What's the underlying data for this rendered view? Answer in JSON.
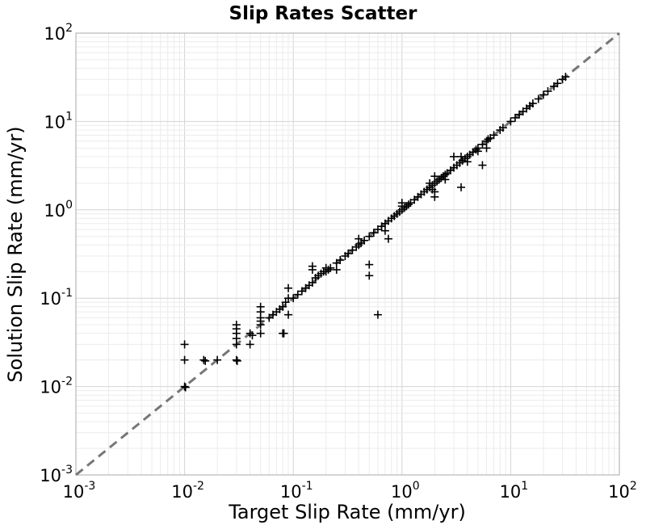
{
  "chart_data": {
    "type": "scatter",
    "title": "Slip Rates Scatter",
    "xlabel": "Target Slip Rate (mm/yr)",
    "ylabel": "Solution Slip Rate (mm/yr)",
    "xscale": "log",
    "yscale": "log",
    "xlim": [
      0.001,
      100
    ],
    "ylim": [
      0.001,
      100
    ],
    "grid": true,
    "marker": "plus",
    "marker_color": "#000000",
    "reference_line": {
      "style": "dashed",
      "color": "#777777",
      "from": [
        0.001,
        0.001
      ],
      "to": [
        100,
        100
      ]
    },
    "xticks": [
      {
        "value": 0.001,
        "base": "10",
        "exp": "-3"
      },
      {
        "value": 0.01,
        "base": "10",
        "exp": "-2"
      },
      {
        "value": 0.1,
        "base": "10",
        "exp": "-1"
      },
      {
        "value": 1,
        "base": "10",
        "exp": "0"
      },
      {
        "value": 10,
        "base": "10",
        "exp": "1"
      },
      {
        "value": 100,
        "base": "10",
        "exp": "2"
      }
    ],
    "yticks": [
      {
        "value": 0.001,
        "base": "10",
        "exp": "-3"
      },
      {
        "value": 0.01,
        "base": "10",
        "exp": "-2"
      },
      {
        "value": 0.1,
        "base": "10",
        "exp": "-1"
      },
      {
        "value": 1,
        "base": "10",
        "exp": "0"
      },
      {
        "value": 10,
        "base": "10",
        "exp": "1"
      },
      {
        "value": 100,
        "base": "10",
        "exp": "2"
      }
    ],
    "points": [
      [
        0.01,
        0.01
      ],
      [
        0.0102,
        0.0098
      ],
      [
        0.01,
        0.02
      ],
      [
        0.01,
        0.03
      ],
      [
        0.015,
        0.02
      ],
      [
        0.0155,
        0.0195
      ],
      [
        0.02,
        0.02
      ],
      [
        0.03,
        0.02
      ],
      [
        0.0305,
        0.0195
      ],
      [
        0.03,
        0.03
      ],
      [
        0.03,
        0.035
      ],
      [
        0.03,
        0.04
      ],
      [
        0.03,
        0.045
      ],
      [
        0.03,
        0.05
      ],
      [
        0.04,
        0.03
      ],
      [
        0.04,
        0.04
      ],
      [
        0.042,
        0.038
      ],
      [
        0.05,
        0.04
      ],
      [
        0.05,
        0.05
      ],
      [
        0.05,
        0.055
      ],
      [
        0.05,
        0.06
      ],
      [
        0.05,
        0.07
      ],
      [
        0.05,
        0.08
      ],
      [
        0.06,
        0.06
      ],
      [
        0.065,
        0.065
      ],
      [
        0.07,
        0.07
      ],
      [
        0.075,
        0.075
      ],
      [
        0.08,
        0.04
      ],
      [
        0.082,
        0.04
      ],
      [
        0.08,
        0.08
      ],
      [
        0.085,
        0.09
      ],
      [
        0.09,
        0.1
      ],
      [
        0.09,
        0.065
      ],
      [
        0.09,
        0.13
      ],
      [
        0.1,
        0.1
      ],
      [
        0.11,
        0.11
      ],
      [
        0.12,
        0.12
      ],
      [
        0.13,
        0.13
      ],
      [
        0.14,
        0.14
      ],
      [
        0.15,
        0.15
      ],
      [
        0.15,
        0.21
      ],
      [
        0.15,
        0.23
      ],
      [
        0.16,
        0.17
      ],
      [
        0.17,
        0.18
      ],
      [
        0.18,
        0.19
      ],
      [
        0.19,
        0.2
      ],
      [
        0.2,
        0.2
      ],
      [
        0.2,
        0.22
      ],
      [
        0.21,
        0.21
      ],
      [
        0.22,
        0.22
      ],
      [
        0.25,
        0.25
      ],
      [
        0.25,
        0.21
      ],
      [
        0.27,
        0.27
      ],
      [
        0.3,
        0.3
      ],
      [
        0.32,
        0.32
      ],
      [
        0.35,
        0.35
      ],
      [
        0.38,
        0.38
      ],
      [
        0.4,
        0.4
      ],
      [
        0.4,
        0.47
      ],
      [
        0.42,
        0.42
      ],
      [
        0.45,
        0.45
      ],
      [
        0.5,
        0.5
      ],
      [
        0.5,
        0.24
      ],
      [
        0.5,
        0.18
      ],
      [
        0.55,
        0.55
      ],
      [
        0.6,
        0.6
      ],
      [
        0.6,
        0.065
      ],
      [
        0.65,
        0.65
      ],
      [
        0.7,
        0.7
      ],
      [
        0.7,
        0.58
      ],
      [
        0.75,
        0.75
      ],
      [
        0.75,
        0.47
      ],
      [
        0.8,
        0.8
      ],
      [
        0.85,
        0.85
      ],
      [
        0.9,
        0.9
      ],
      [
        0.95,
        0.95
      ],
      [
        1.0,
        1.0
      ],
      [
        1.0,
        1.1
      ],
      [
        1.0,
        1.2
      ],
      [
        1.05,
        1.05
      ],
      [
        1.1,
        1.1
      ],
      [
        1.15,
        1.15
      ],
      [
        1.2,
        1.2
      ],
      [
        1.3,
        1.3
      ],
      [
        1.4,
        1.4
      ],
      [
        1.5,
        1.5
      ],
      [
        1.6,
        1.6
      ],
      [
        1.7,
        1.7
      ],
      [
        1.8,
        1.8
      ],
      [
        1.9,
        1.9
      ],
      [
        2.0,
        2.0
      ],
      [
        2.1,
        2.1
      ],
      [
        2.2,
        2.2
      ],
      [
        2.3,
        2.3
      ],
      [
        2.4,
        2.4
      ],
      [
        2.5,
        2.5
      ],
      [
        2.6,
        2.6
      ],
      [
        2.8,
        2.8
      ],
      [
        3.0,
        3.0
      ],
      [
        3.2,
        3.2
      ],
      [
        3.4,
        3.4
      ],
      [
        3.6,
        3.6
      ],
      [
        3.8,
        3.8
      ],
      [
        4.0,
        4.0
      ],
      [
        4.2,
        4.2
      ],
      [
        4.5,
        4.5
      ],
      [
        4.8,
        4.8
      ],
      [
        5.0,
        5.0
      ],
      [
        5.5,
        5.5
      ],
      [
        6.0,
        6.0
      ],
      [
        6.5,
        6.5
      ],
      [
        7.0,
        7.0
      ],
      [
        2.0,
        1.6
      ],
      [
        2.0,
        1.4
      ],
      [
        2.5,
        2.2
      ],
      [
        3.0,
        4.0
      ],
      [
        3.5,
        4.0
      ],
      [
        3.5,
        1.8
      ],
      [
        5.5,
        3.2
      ],
      [
        2.0,
        2.4
      ],
      [
        1.8,
        2.0
      ],
      [
        1.9,
        1.7
      ],
      [
        4.0,
        3.5
      ],
      [
        5.0,
        4.6
      ],
      [
        6.0,
        5.0
      ],
      [
        6.2,
        6.3
      ],
      [
        8.0,
        8.0
      ],
      [
        8.5,
        8.5
      ],
      [
        10.0,
        10.0
      ],
      [
        11.0,
        11.0
      ],
      [
        12.0,
        12.0
      ],
      [
        13.0,
        13.0
      ],
      [
        14.0,
        14.0
      ],
      [
        15.0,
        15.0
      ],
      [
        16.0,
        16.0
      ],
      [
        18.0,
        18.0
      ],
      [
        20.0,
        20.0
      ],
      [
        22.0,
        22.0
      ],
      [
        25.0,
        25.0
      ],
      [
        27.0,
        27.0
      ],
      [
        30.0,
        30.0
      ],
      [
        32.0,
        32.0
      ]
    ]
  }
}
